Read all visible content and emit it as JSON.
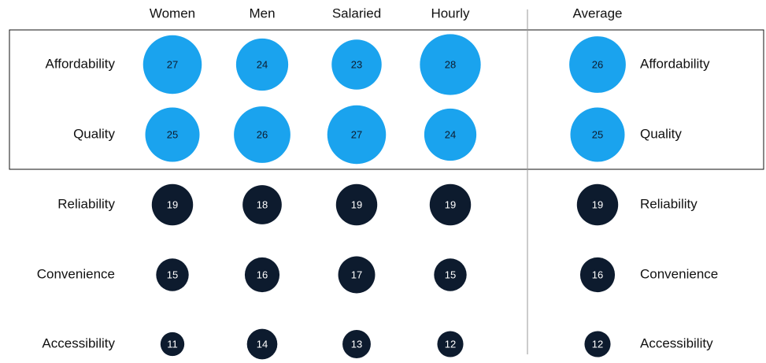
{
  "chart_data": {
    "type": "bubble-grid",
    "categories": [
      "Affordability",
      "Quality",
      "Reliability",
      "Convenience",
      "Accessibility"
    ],
    "point_colors": [
      "#1aa3ee",
      "#1aa3ee",
      "#0d1b2e",
      "#0d1b2e",
      "#0d1b2e"
    ],
    "text_colors": [
      "#0d1b2e",
      "#0d1b2e",
      "#ffffff",
      "#ffffff",
      "#ffffff"
    ],
    "series": [
      {
        "name": "Women",
        "values": [
          27,
          25,
          19,
          15,
          11
        ]
      },
      {
        "name": "Men",
        "values": [
          24,
          26,
          18,
          16,
          14
        ]
      },
      {
        "name": "Salaried",
        "values": [
          23,
          27,
          19,
          17,
          13
        ]
      },
      {
        "name": "Hourly",
        "values": [
          28,
          24,
          19,
          15,
          12
        ]
      },
      {
        "name": "Average",
        "values": [
          26,
          25,
          19,
          16,
          12
        ]
      }
    ]
  }
}
